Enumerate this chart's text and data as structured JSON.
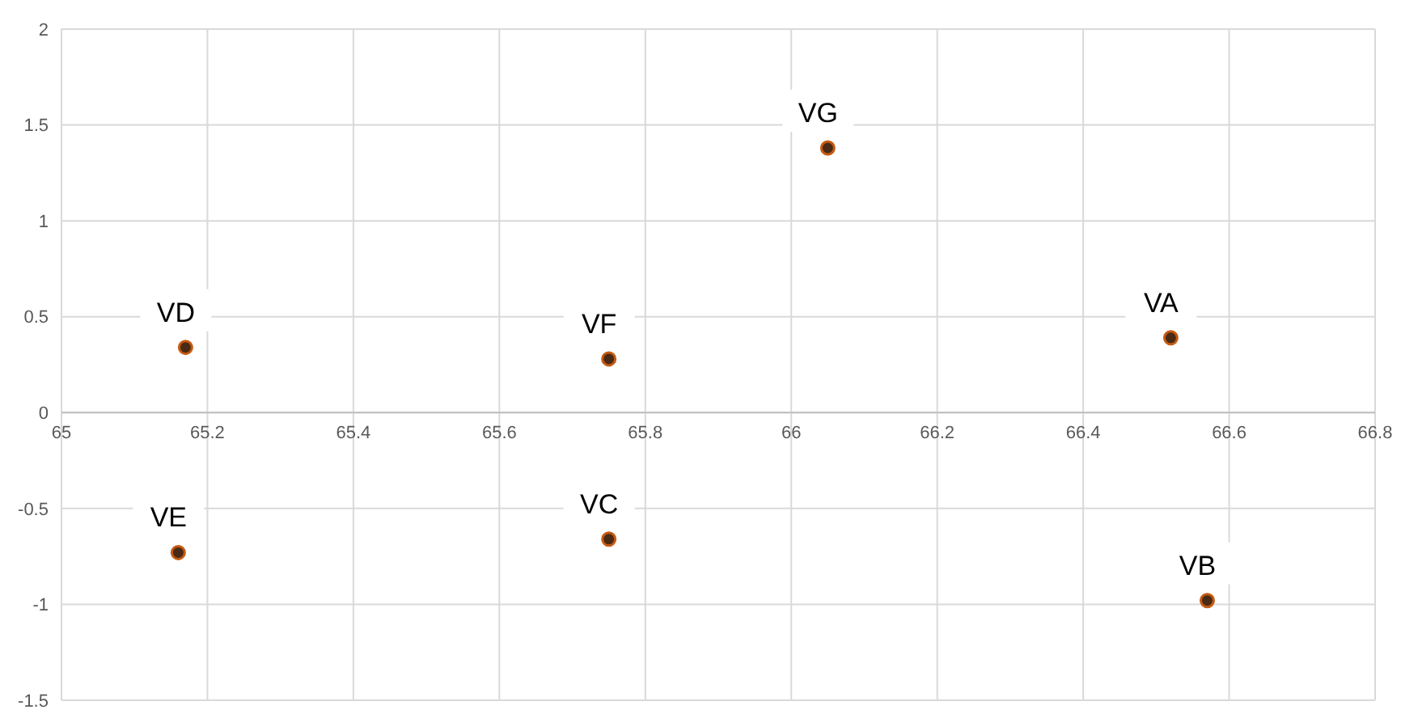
{
  "chart_data": {
    "type": "scatter",
    "x": [
      66.52,
      66.57,
      65.75,
      65.17,
      65.16,
      65.75,
      66.05
    ],
    "series": [
      {
        "color": "#4a2a14",
        "values": [
          0.39,
          -0.98,
          -0.66,
          0.34,
          -0.73,
          0.28,
          1.38
        ]
      }
    ],
    "annotations": [
      {
        "text": "VA",
        "x": 66.52,
        "y": 0.39
      },
      {
        "text": "VB",
        "x": 66.57,
        "y": -0.98
      },
      {
        "text": "VC",
        "x": 65.75,
        "y": -0.66
      },
      {
        "text": "VD",
        "x": 65.17,
        "y": 0.34
      },
      {
        "text": "VE",
        "x": 65.16,
        "y": -0.73
      },
      {
        "text": "VF",
        "x": 65.75,
        "y": 0.28
      },
      {
        "text": "VG",
        "x": 66.05,
        "y": 1.38
      }
    ],
    "xlim": [
      65,
      66.8
    ],
    "xticks": [
      65,
      65.2,
      65.4,
      65.6,
      65.8,
      66,
      66.2,
      66.4,
      66.6,
      66.8
    ],
    "ylim": [
      -1.5,
      2
    ],
    "yticks": [
      -1.5,
      -1,
      -0.5,
      0,
      0.5,
      1,
      1.5,
      2
    ],
    "grid": true,
    "marker": "circle"
  }
}
